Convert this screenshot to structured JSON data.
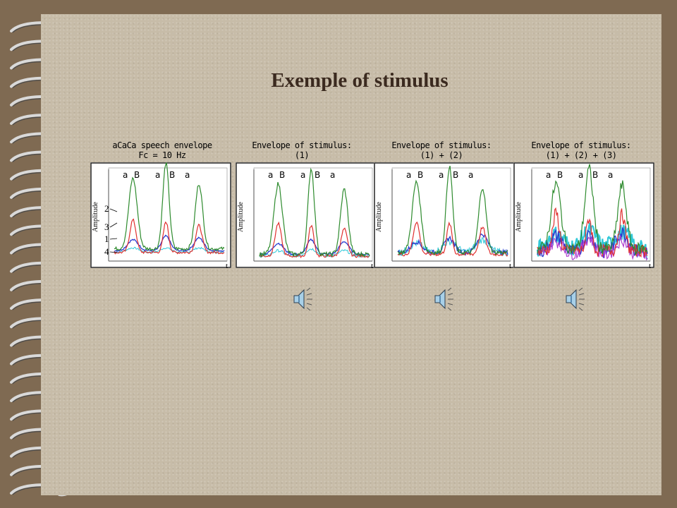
{
  "slide": {
    "title": "Exemple of stimulus"
  },
  "colors": {
    "green": "#2e8b2e",
    "red": "#e03030",
    "blue": "#2a3ad0",
    "cyan": "#30c8d8",
    "magenta": "#b040d0"
  },
  "panels": [
    {
      "title_lines": [
        "aCaCa speech envelope",
        "Fc = 10 Hz"
      ],
      "ylabel": "Amplitude",
      "xlabel": "t",
      "syllables": [
        "a",
        "B",
        "a",
        "B",
        "a"
      ],
      "curve_labels": [
        "2",
        "3",
        "1",
        "4"
      ],
      "icons": []
    },
    {
      "title_lines": [
        "Envelope of stimulus:",
        "(1)"
      ],
      "ylabel": "Amplitude",
      "xlabel": "t",
      "syllables": [
        "a",
        "B",
        "a",
        "B",
        "a"
      ],
      "icons": [
        "speaker-icon"
      ]
    },
    {
      "title_lines": [
        "Envelope of stimulus:",
        "(1) + (2)"
      ],
      "ylabel": "Amplitude",
      "xlabel": "t",
      "syllables": [
        "a",
        "B",
        "a",
        "B",
        "a"
      ],
      "icons": [
        "speaker-icon"
      ]
    },
    {
      "title_lines": [
        "Envelope of stimulus:",
        "(1) + (2) + (3)"
      ],
      "ylabel": "Amplitude",
      "xlabel": "t",
      "syllables": [
        "a",
        "B",
        "a",
        "B",
        "a"
      ],
      "icons": [
        "speaker-icon"
      ]
    }
  ]
}
